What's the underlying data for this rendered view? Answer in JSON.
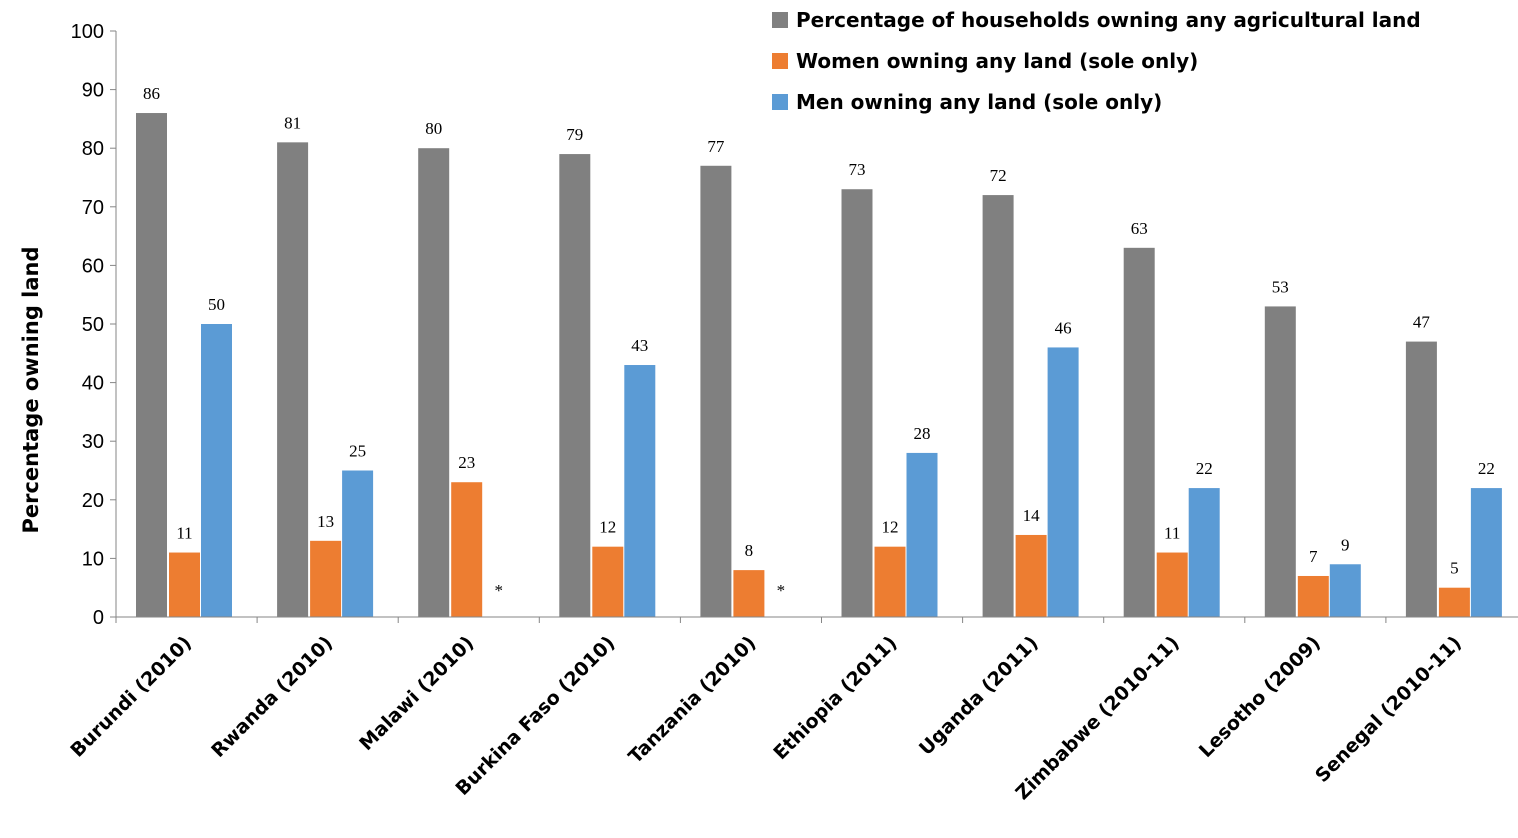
{
  "chart_data": {
    "type": "bar",
    "title": "",
    "xlabel": "",
    "ylabel": "Percentage owning land",
    "ylim": [
      0,
      100
    ],
    "yticks": [
      0,
      10,
      20,
      30,
      40,
      50,
      60,
      70,
      80,
      90,
      100
    ],
    "grid": false,
    "legend_position": "top-right",
    "categories": [
      "Burundi (2010)",
      "Rwanda (2010)",
      "Malawi (2010)",
      "Burkina Faso (2010)",
      "Tanzania (2010)",
      "Ethiopia (2011)",
      "Uganda (2011)",
      "Zimbabwe (2010-11)",
      "Lesotho (2009)",
      "Senegal (2010-11)"
    ],
    "series": [
      {
        "name": "Percentage of households owning any agricultural land",
        "color": "#808080",
        "values": [
          86,
          81,
          80,
          79,
          77,
          73,
          72,
          63,
          53,
          47
        ]
      },
      {
        "name": "Women owning any land (sole only)",
        "color": "#ED7D31",
        "values": [
          11,
          13,
          23,
          12,
          8,
          12,
          14,
          11,
          7,
          5
        ]
      },
      {
        "name": "Men owning any land (sole only)",
        "color": "#5B9BD5",
        "values": [
          50,
          25,
          null,
          43,
          null,
          28,
          46,
          22,
          9,
          22
        ]
      }
    ],
    "missing_marker": "*"
  }
}
